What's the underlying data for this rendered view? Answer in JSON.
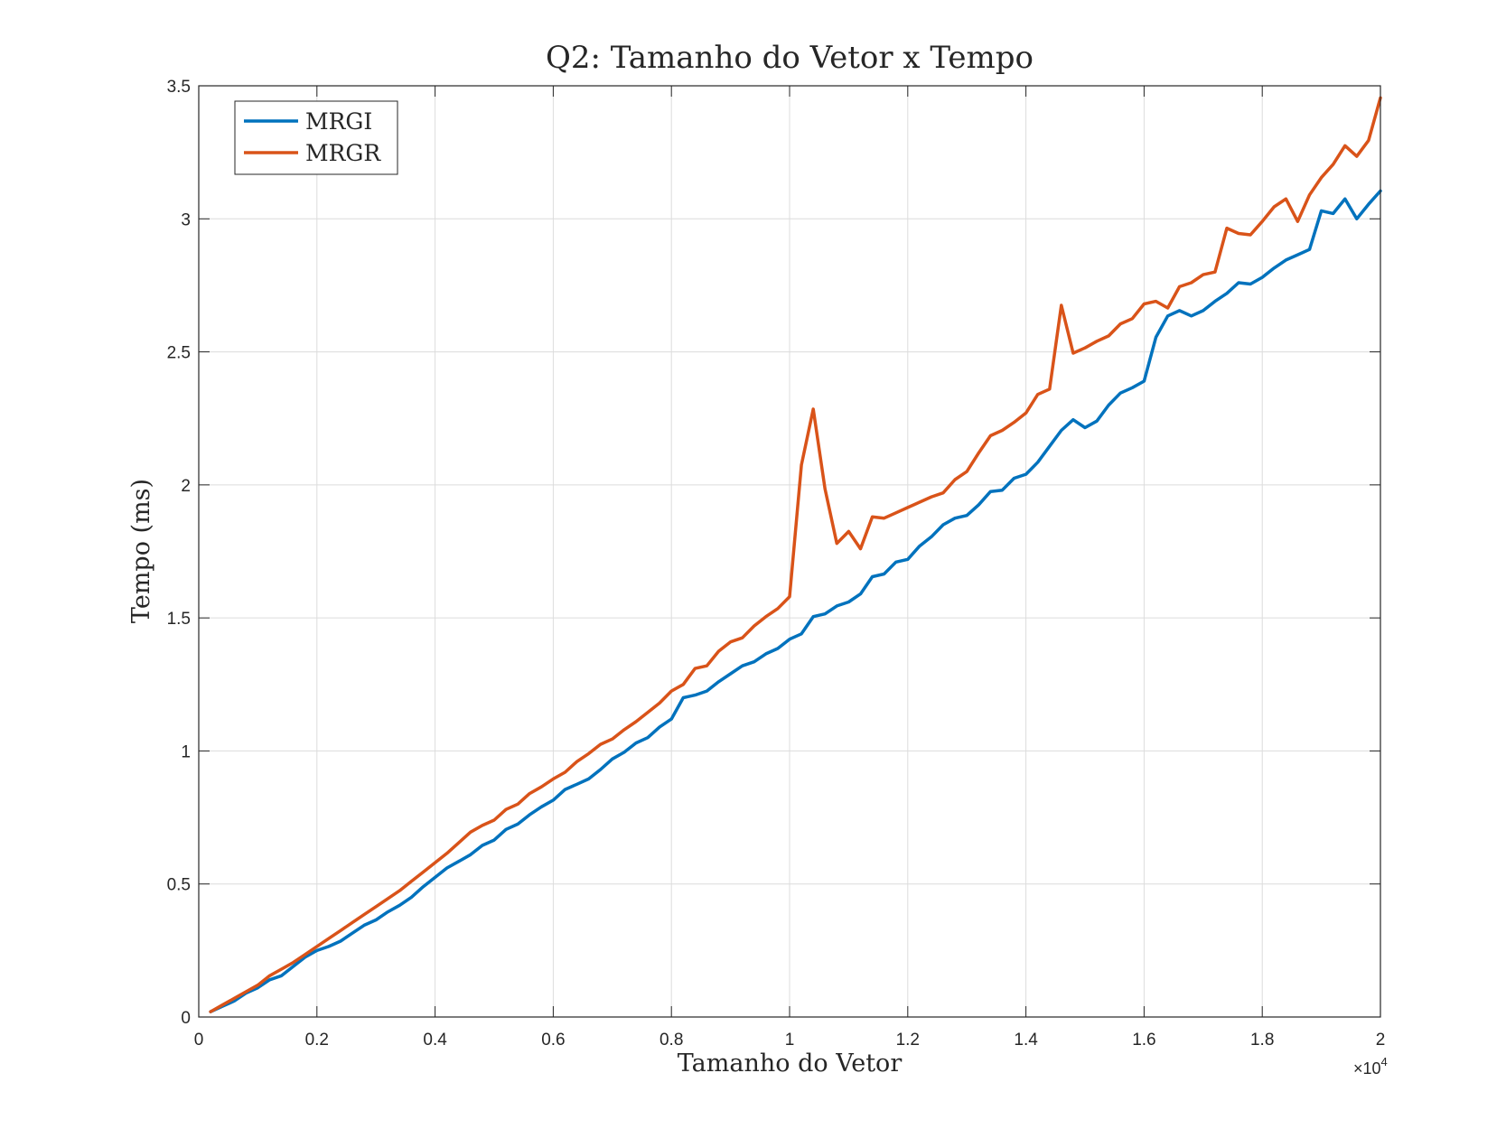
{
  "chart_data": {
    "type": "line",
    "title": "Q2: Tamanho do Vetor x Tempo",
    "xlabel": "Tamanho do Vetor",
    "ylabel": "Tempo (ms)",
    "x_exponent_label": "×10",
    "x_exponent_power": "4",
    "xlim": [
      0,
      20000
    ],
    "ylim": [
      0,
      3.5
    ],
    "x_ticks": [
      0,
      2000,
      4000,
      6000,
      8000,
      10000,
      12000,
      14000,
      16000,
      18000,
      20000
    ],
    "x_tick_labels": [
      "0",
      "0.2",
      "0.4",
      "0.6",
      "0.8",
      "1",
      "1.2",
      "1.4",
      "1.6",
      "1.8",
      "2"
    ],
    "y_ticks": [
      0,
      0.5,
      1,
      1.5,
      2,
      2.5,
      3,
      3.5
    ],
    "y_tick_labels": [
      "0",
      "0.5",
      "1",
      "1.5",
      "2",
      "2.5",
      "3",
      "3.5"
    ],
    "grid": true,
    "legend_position": "top-left",
    "x": [
      200,
      400,
      600,
      800,
      1000,
      1200,
      1400,
      1600,
      1800,
      2000,
      2200,
      2400,
      2600,
      2800,
      3000,
      3200,
      3400,
      3600,
      3800,
      4000,
      4200,
      4400,
      4600,
      4800,
      5000,
      5200,
      5400,
      5600,
      5800,
      6000,
      6200,
      6400,
      6600,
      6800,
      7000,
      7200,
      7400,
      7600,
      7800,
      8000,
      8200,
      8400,
      8600,
      8800,
      9000,
      9200,
      9400,
      9600,
      9800,
      10000,
      10200,
      10400,
      10600,
      10800,
      11000,
      11200,
      11400,
      11600,
      11800,
      12000,
      12200,
      12400,
      12600,
      12800,
      13000,
      13200,
      13400,
      13600,
      13800,
      14000,
      14200,
      14400,
      14600,
      14800,
      15000,
      15200,
      15400,
      15600,
      15800,
      16000,
      16200,
      16400,
      16600,
      16800,
      17000,
      17200,
      17400,
      17600,
      17800,
      18000,
      18200,
      18400,
      18600,
      18800,
      19000,
      19200,
      19400,
      19600,
      19800,
      20000
    ],
    "series": [
      {
        "name": "MRGI",
        "color": "#0072BD",
        "values": [
          0.02,
          0.04,
          0.06,
          0.09,
          0.11,
          0.14,
          0.155,
          0.19,
          0.225,
          0.25,
          0.265,
          0.285,
          0.315,
          0.345,
          0.365,
          0.395,
          0.42,
          0.45,
          0.49,
          0.525,
          0.56,
          0.585,
          0.61,
          0.645,
          0.665,
          0.705,
          0.725,
          0.76,
          0.79,
          0.815,
          0.855,
          0.875,
          0.895,
          0.93,
          0.97,
          0.995,
          1.03,
          1.05,
          1.09,
          1.12,
          1.2,
          1.21,
          1.225,
          1.26,
          1.29,
          1.32,
          1.335,
          1.365,
          1.385,
          1.42,
          1.44,
          1.505,
          1.515,
          1.545,
          1.56,
          1.59,
          1.655,
          1.665,
          1.71,
          1.72,
          1.77,
          1.805,
          1.85,
          1.875,
          1.885,
          1.925,
          1.975,
          1.98,
          2.025,
          2.04,
          2.085,
          2.145,
          2.205,
          2.245,
          2.215,
          2.24,
          2.3,
          2.345,
          2.365,
          2.39,
          2.555,
          2.635,
          2.655,
          2.635,
          2.655,
          2.69,
          2.72,
          2.76,
          2.755,
          2.78,
          2.815,
          2.845,
          2.865,
          2.885,
          3.03,
          3.02,
          3.075,
          3.0,
          3.055,
          3.105
        ]
      },
      {
        "name": "MRGR",
        "color": "#D95319",
        "values": [
          0.02,
          0.045,
          0.07,
          0.095,
          0.12,
          0.155,
          0.18,
          0.205,
          0.235,
          0.265,
          0.295,
          0.325,
          0.355,
          0.385,
          0.415,
          0.445,
          0.475,
          0.51,
          0.545,
          0.58,
          0.615,
          0.655,
          0.695,
          0.72,
          0.74,
          0.78,
          0.8,
          0.84,
          0.865,
          0.895,
          0.92,
          0.96,
          0.99,
          1.025,
          1.045,
          1.08,
          1.11,
          1.145,
          1.18,
          1.225,
          1.25,
          1.31,
          1.32,
          1.375,
          1.41,
          1.425,
          1.47,
          1.505,
          1.535,
          1.58,
          2.075,
          2.285,
          1.985,
          1.78,
          1.825,
          1.76,
          1.88,
          1.875,
          1.895,
          1.915,
          1.935,
          1.955,
          1.97,
          2.02,
          2.05,
          2.12,
          2.185,
          2.205,
          2.235,
          2.27,
          2.34,
          2.36,
          2.675,
          2.495,
          2.515,
          2.54,
          2.56,
          2.605,
          2.625,
          2.68,
          2.69,
          2.665,
          2.745,
          2.76,
          2.79,
          2.8,
          2.965,
          2.945,
          2.94,
          2.99,
          3.045,
          3.075,
          2.99,
          3.09,
          3.155,
          3.205,
          3.275,
          3.235,
          3.295,
          3.455
        ]
      }
    ]
  }
}
